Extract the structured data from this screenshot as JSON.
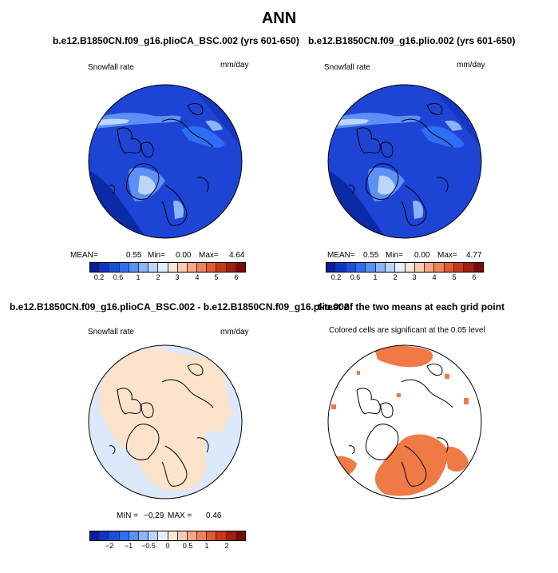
{
  "figure": {
    "title": "ANN"
  },
  "panels": {
    "top_left": {
      "title": "b.e12.B1850CN.f09_g16.plioCA_BSC.002 (yrs 601-650)",
      "variable": "Snowfall rate",
      "units": "mm/day",
      "mean_label": "MEAN=",
      "mean": "0.55",
      "min_label": "Min=",
      "min": "0.00",
      "max_label": "Max=",
      "max": "4.64"
    },
    "top_right": {
      "title": "b.e12.B1850CN.f09_g16.plio.002 (yrs 601-650)",
      "variable": "Snowfall rate",
      "units": "mm/day",
      "mean_label": "MEAN=",
      "mean": "0.55",
      "min_label": "Min=",
      "min": "0.00",
      "max_label": "Max=",
      "max": "4.77"
    },
    "bottom_left": {
      "title": "b.e12.B1850CN.f09_g16.plioCA_BSC.002 - b.e12.B1850CN.f09_g16.plio.002",
      "variable": "Snowfall rate",
      "units": "mm/day",
      "min_label": "MIN =",
      "min": "−0.29",
      "max_label": "MAX =",
      "max": "0.46"
    },
    "bottom_right": {
      "title": "t-test of the two means at each grid point",
      "subtitle": "Colored cells are significant at the 0.05 level"
    }
  },
  "colorbars": {
    "snowfall": {
      "colors": [
        "#08209e",
        "#0c35c8",
        "#1a4fe0",
        "#2d6ef5",
        "#5690f8",
        "#8bb4f9",
        "#bcd6fb",
        "#e4eefc",
        "#fde6d4",
        "#fbcdb0",
        "#f7a584",
        "#f08258",
        "#e05a33",
        "#c73818",
        "#a51d0c",
        "#7a0a08"
      ],
      "tick_labels": [
        "0.2",
        "0.6",
        "1",
        "2",
        "3",
        "4",
        "5",
        "6"
      ]
    },
    "difference": {
      "colors": [
        "#08209e",
        "#0c35c8",
        "#1a4fe0",
        "#2d6ef5",
        "#5690f8",
        "#8bb4f9",
        "#bcd6fb",
        "#e4eefc",
        "#fde6d4",
        "#fbcdb0",
        "#f7a584",
        "#f08258",
        "#e05a33",
        "#c73818",
        "#a51d0c",
        "#7a0a08"
      ],
      "tick_labels": [
        "−2",
        "−1",
        "−0.5",
        "0",
        "0.5",
        "1",
        "2"
      ]
    }
  },
  "map_colors": {
    "snow_base": "#1e44d6",
    "snow_dark": "#0b2aa8",
    "snow_light": "#5d8ff5",
    "snow_pale": "#bcd6fb",
    "diff_neg": "#dce9fb",
    "diff_pos": "#fde3cc",
    "ttest_sig": "#f07a45"
  }
}
